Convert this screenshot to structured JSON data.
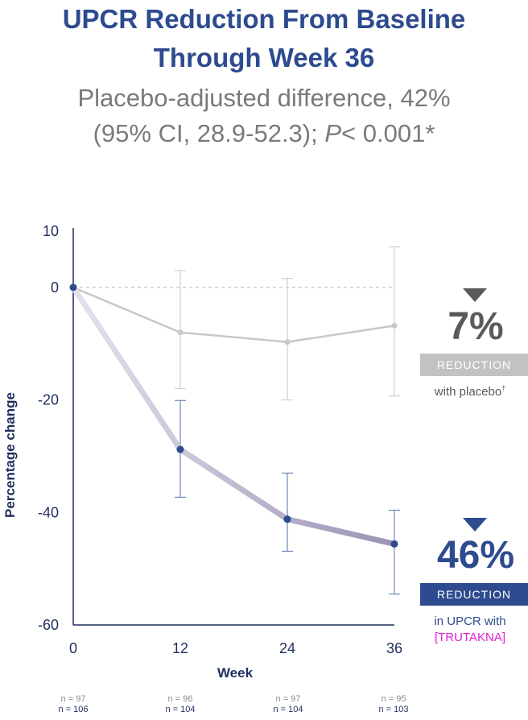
{
  "header": {
    "title_line1": "UPCR Reduction From Baseline",
    "title_line2": "Through Week 36",
    "subtitle_line1": "Placebo-adjusted difference, 42%",
    "subtitle_line2_pre": "(95% CI, 28.9-52.3); ",
    "subtitle_p": "P",
    "subtitle_line2_post": "< 0.001*"
  },
  "chart_data": {
    "type": "line",
    "title": "UPCR Reduction From Baseline Through Week 36",
    "xlabel": "Week",
    "ylabel": "Percentage change",
    "x": [
      0,
      12,
      24,
      36
    ],
    "xlim": [
      0,
      36
    ],
    "ylim": [
      -60,
      10
    ],
    "yticks": [
      10,
      0,
      -20,
      -40,
      -60
    ],
    "ytick_labels": [
      "10",
      "0",
      "-20",
      "-40",
      "-60"
    ],
    "xtick_labels": [
      "0",
      "12",
      "24",
      "36"
    ],
    "series": [
      {
        "name": "placebo",
        "values": [
          0,
          -8,
          -9.7,
          -6.8
        ],
        "ci_low": [
          null,
          -18,
          -20,
          -19.3
        ],
        "ci_high": [
          null,
          3,
          1.6,
          7.2
        ],
        "color": "#c8c8c8",
        "n": [
          "n = 97",
          "n = 96",
          "n = 97",
          "n = 95"
        ]
      },
      {
        "name": "TRUTAKNA",
        "values": [
          0,
          -28.8,
          -41.2,
          -45.6
        ],
        "ci_low": [
          null,
          -37.3,
          -46.9,
          -54.5
        ],
        "ci_high": [
          null,
          -20.1,
          -33,
          -39.6
        ],
        "color": "#2d4b8e",
        "n": [
          "n = 106",
          "n = 104",
          "n = 104",
          "n = 103"
        ]
      }
    ],
    "zero_line": "dashed"
  },
  "callouts": {
    "placebo": {
      "value": "7%",
      "banner": "REDUCTION",
      "note": "with placebo",
      "note_mark": "†",
      "color": "#c2c2c2",
      "text_color": "#5a5a5a"
    },
    "treatment": {
      "value": "46%",
      "banner": "REDUCTION",
      "note_line1": "in UPCR with",
      "note_line2": "[TRUTAKNA]",
      "color": "#2d4b8e",
      "bracket_color": "#e020d0"
    }
  },
  "colors": {
    "title": "#2d4b8e",
    "subtitle": "#7a7a7a",
    "axis_text": "#1f2e5e"
  }
}
